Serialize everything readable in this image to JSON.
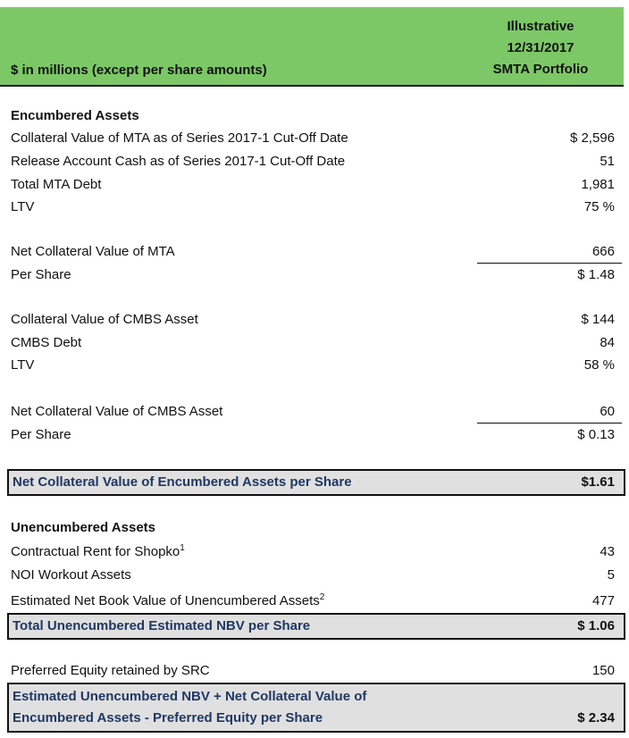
{
  "header": {
    "left": "$ in millions (except per share amounts)",
    "right_line1": "Illustrative",
    "right_line2": "12/31/2017",
    "right_line3": "SMTA Portfolio"
  },
  "encumbered": {
    "heading": "Encumbered Assets",
    "rows": [
      {
        "label": "Collateral Value of MTA as of Series 2017-1 Cut-Off Date",
        "value": "$ 2,596"
      },
      {
        "label": "Release Account Cash as of Series 2017-1 Cut-Off Date",
        "value": "51"
      },
      {
        "label": "Total MTA Debt",
        "value": "1,981"
      },
      {
        "label": "LTV",
        "value": "75 %"
      },
      {
        "label": "Net Collateral Value of MTA",
        "value": "666"
      },
      {
        "label": "Per Share",
        "value": "$ 1.48"
      },
      {
        "label": "Collateral Value of CMBS Asset",
        "value": "$ 144"
      },
      {
        "label": "CMBS Debt",
        "value": "84"
      },
      {
        "label": "LTV",
        "value": "58 %"
      },
      {
        "label": "Net Collateral Value of CMBS Asset",
        "value": "60"
      },
      {
        "label": "Per Share",
        "value": "$ 0.13"
      }
    ],
    "total_label": "Net Collateral Value of Encumbered Assets per Share",
    "total_value": "$1.61"
  },
  "unencumbered": {
    "heading": "Unencumbered Assets",
    "rows": [
      {
        "label": "Contractual Rent for Shopko",
        "sup": "1",
        "value": "43"
      },
      {
        "label": "NOI Workout Assets",
        "sup": "",
        "value": "5"
      },
      {
        "label": "Estimated Net Book Value of Unencumbered Assets",
        "sup": "2",
        "value": "477"
      }
    ],
    "total_label": "Total Unencumbered Estimated NBV per Share",
    "total_value": "$ 1.06"
  },
  "preferred": {
    "label": "Preferred Equity retained by SRC",
    "value": "150"
  },
  "final": {
    "line1": "Estimated Unencumbered NBV + Net Collateral Value of",
    "line2": "Encumbered Assets - Preferred Equity per Share",
    "value": "$ 2.34"
  }
}
